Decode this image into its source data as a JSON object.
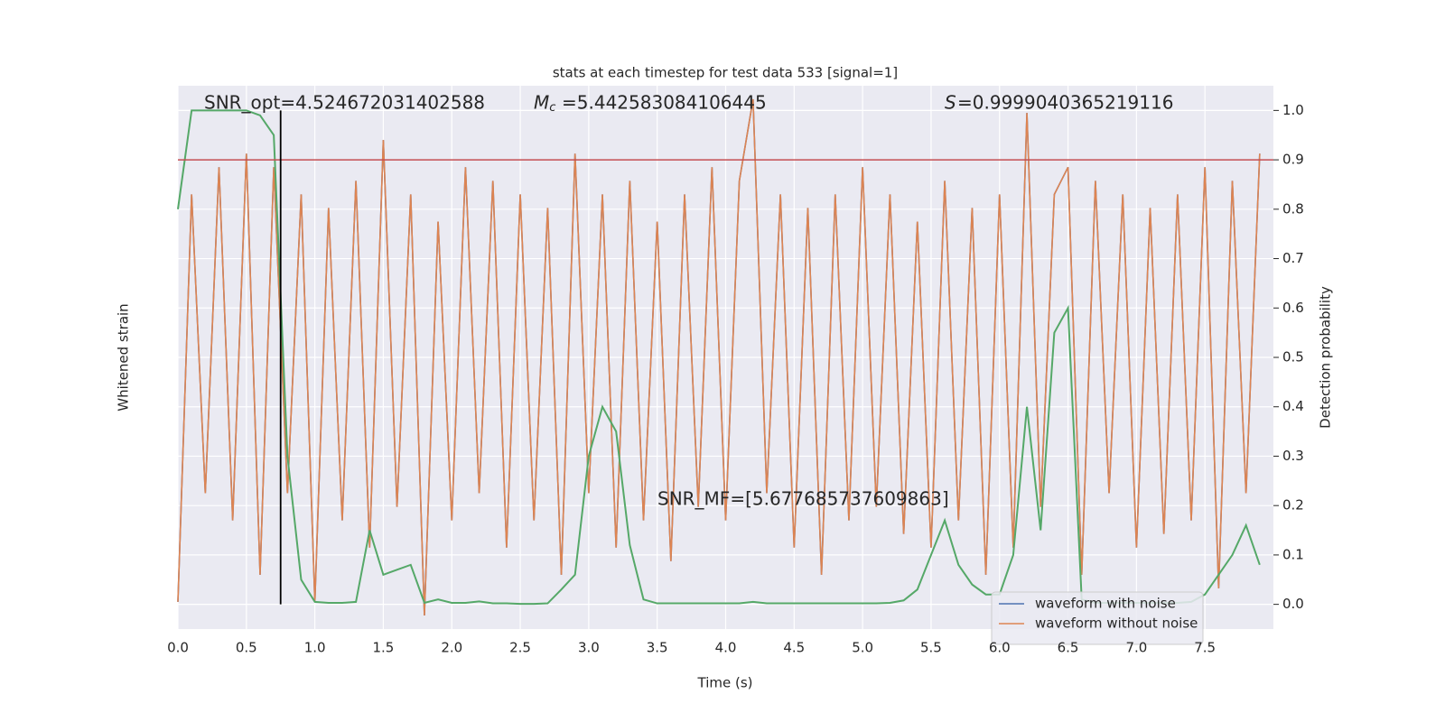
{
  "chart_data": {
    "type": "line",
    "title": "stats at each timestep for test data 533 [signal=1]",
    "xlabel": "Time (s)",
    "ylabel": "Whitened strain",
    "y2label": "Detection probability",
    "annotations": [
      "SNR_opt=4.524672031402588",
      "=5.442583084106445",
      "=0.9999040365219116",
      "SNR_MF=[5.677685737609863]"
    ],
    "xlim": [
      0,
      8
    ],
    "ylim": [
      -1,
      1
    ],
    "y2lim": [
      -0.05,
      1.05
    ],
    "xticks": [
      {
        "value": 0,
        "label": "0.0"
      },
      0.5,
      {
        "value": 1,
        "label": "1.0"
      },
      1.5,
      {
        "value": 2,
        "label": "2.0"
      },
      2.5,
      {
        "value": 3,
        "label": "3.0"
      },
      3.5,
      {
        "value": 4,
        "label": "4.0"
      },
      4.5,
      {
        "value": 5,
        "label": "5.0"
      },
      5.5,
      {
        "value": 6,
        "label": "6.0"
      },
      6.5,
      {
        "value": 7,
        "label": "7.0"
      },
      7.5
    ],
    "y2ticks": [
      {
        "value": 0,
        "label": "0.0"
      },
      0.1,
      0.2,
      0.3,
      0.4,
      0.5,
      0.6,
      0.7,
      0.8,
      0.9,
      {
        "value": 1,
        "label": "1.0"
      }
    ],
    "grid": true,
    "legend": "lower right",
    "threshold": 0.9,
    "threshold_color": "#c44e52",
    "marker_x": 0.75,
    "x": [
      0.0,
      0.1,
      0.2,
      0.3,
      0.4,
      0.5,
      0.6,
      0.7,
      0.8,
      0.9,
      1.0,
      1.1,
      1.2,
      1.3,
      1.4,
      1.5,
      1.6,
      1.7,
      1.8,
      1.9,
      2.0,
      2.1,
      2.2,
      2.3,
      2.4,
      2.5,
      2.6,
      2.7,
      2.8,
      2.9,
      3.0,
      3.1,
      3.2,
      3.3,
      3.4,
      3.5,
      3.6,
      3.7,
      3.8,
      3.9,
      4.0,
      4.1,
      4.2,
      4.3,
      4.4,
      4.5,
      4.6,
      4.7,
      4.8,
      4.9,
      5.0,
      5.1,
      5.2,
      5.3,
      5.4,
      5.5,
      5.6,
      5.7,
      5.8,
      5.9,
      6.0,
      6.1,
      6.2,
      6.3,
      6.4,
      6.5,
      6.6,
      6.7,
      6.8,
      6.9,
      7.0,
      7.1,
      7.2,
      7.3,
      7.4,
      7.5,
      7.6,
      7.7,
      7.8,
      7.9
    ],
    "series": [
      {
        "name": "waveform with noise",
        "color": "#4c72b0",
        "values": [
          -0.9,
          0.6,
          -0.5,
          0.7,
          -0.6,
          0.75,
          -0.8,
          0.7,
          -0.5,
          0.6,
          -0.9,
          0.55,
          -0.6,
          0.65,
          -0.7,
          0.8,
          -0.55,
          0.6,
          -0.95,
          0.5,
          -0.6,
          0.7,
          -0.5,
          0.65,
          -0.7,
          0.6,
          -0.6,
          0.55,
          -0.8,
          0.75,
          -0.5,
          0.6,
          -0.7,
          0.65,
          -0.6,
          0.5,
          -0.75,
          0.6,
          -0.55,
          0.7,
          -0.6,
          0.65,
          0.95,
          -0.5,
          0.6,
          -0.7,
          0.55,
          -0.8,
          0.6,
          -0.6,
          0.7,
          -0.55,
          0.6,
          -0.65,
          0.5,
          -0.7,
          0.65,
          -0.6,
          0.55,
          -0.8,
          0.6,
          -0.7,
          0.9,
          -0.55,
          0.6,
          0.7,
          -0.8,
          0.65,
          -0.5,
          0.6,
          -0.7,
          0.55,
          -0.65,
          0.6,
          -0.6,
          0.7,
          -0.85,
          0.65,
          -0.5,
          0.75
        ]
      },
      {
        "name": "waveform without noise",
        "color": "#dd8452",
        "values": [
          -0.9,
          0.6,
          -0.5,
          0.7,
          -0.6,
          0.75,
          -0.8,
          0.7,
          -0.5,
          0.6,
          -0.9,
          0.55,
          -0.6,
          0.65,
          -0.7,
          0.8,
          -0.55,
          0.6,
          -0.95,
          0.5,
          -0.6,
          0.7,
          -0.5,
          0.65,
          -0.7,
          0.6,
          -0.6,
          0.55,
          -0.8,
          0.75,
          -0.5,
          0.6,
          -0.7,
          0.65,
          -0.6,
          0.5,
          -0.75,
          0.6,
          -0.55,
          0.7,
          -0.6,
          0.65,
          0.95,
          -0.5,
          0.6,
          -0.7,
          0.55,
          -0.8,
          0.6,
          -0.6,
          0.7,
          -0.55,
          0.6,
          -0.65,
          0.5,
          -0.7,
          0.65,
          -0.6,
          0.55,
          -0.8,
          0.6,
          -0.7,
          0.9,
          -0.55,
          0.6,
          0.7,
          -0.8,
          0.65,
          -0.5,
          0.6,
          -0.7,
          0.55,
          -0.65,
          0.6,
          -0.6,
          0.7,
          -0.85,
          0.65,
          -0.5,
          0.75
        ]
      },
      {
        "color": "#55a868",
        "axis": "y2",
        "values": [
          0.8,
          1.0,
          1.0,
          1.0,
          1.0,
          1.0,
          0.99,
          0.95,
          0.3,
          0.05,
          0.005,
          0.003,
          0.003,
          0.005,
          0.15,
          0.06,
          0.07,
          0.08,
          0.003,
          0.01,
          0.003,
          0.003,
          0.006,
          0.002,
          0.002,
          0.001,
          0.001,
          0.002,
          0.03,
          0.06,
          0.3,
          0.4,
          0.35,
          0.12,
          0.01,
          0.002,
          0.002,
          0.002,
          0.002,
          0.002,
          0.002,
          0.002,
          0.005,
          0.002,
          0.002,
          0.002,
          0.002,
          0.002,
          0.002,
          0.002,
          0.002,
          0.002,
          0.003,
          0.008,
          0.03,
          0.1,
          0.17,
          0.08,
          0.04,
          0.02,
          0.02,
          0.1,
          0.4,
          0.15,
          0.55,
          0.6,
          0.01,
          0.003,
          0.003,
          0.003,
          0.003,
          0.003,
          0.003,
          0.003,
          0.005,
          0.02,
          0.06,
          0.1,
          0.16,
          0.08
        ]
      }
    ]
  }
}
